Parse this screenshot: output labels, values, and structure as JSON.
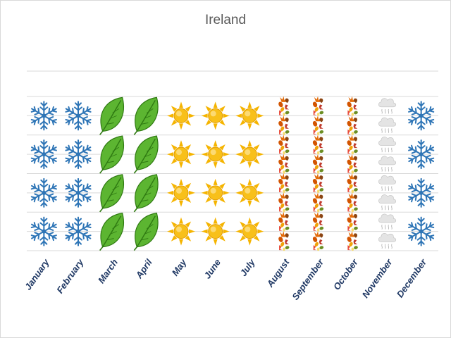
{
  "chart_data": {
    "type": "bar",
    "title": "Ireland",
    "categories": [
      "January",
      "February",
      "March",
      "April",
      "May",
      "June",
      "July",
      "August",
      "September",
      "October",
      "November",
      "December"
    ],
    "values": [
      4,
      4,
      4,
      4,
      4,
      4,
      4,
      4,
      4,
      4,
      4,
      4
    ],
    "ylim": [
      0,
      4
    ],
    "grid": true,
    "legend": "none",
    "bar_fill": [
      "snowflake-icon",
      "snowflake-icon",
      "leaf-icon",
      "leaf-icon",
      "sun-icon",
      "sun-icon",
      "sun-icon",
      "autumn-leaves-icon",
      "autumn-leaves-icon",
      "autumn-leaves-icon",
      "cloud-rain-icon",
      "snowflake-icon"
    ],
    "colors": {
      "snowflake": "#2e75b6",
      "leaf": "#5cb531",
      "leaf_dark": "#2f7a12",
      "sun": "#f5b400",
      "sun_core": "#f8c01a",
      "autumn_orange": "#e36c0a",
      "autumn_red": "#c0392b",
      "autumn_brown": "#8b4513",
      "cloud": "#e4e4e4",
      "gridline": "#d9d9d9",
      "label": "#1f3864"
    }
  }
}
